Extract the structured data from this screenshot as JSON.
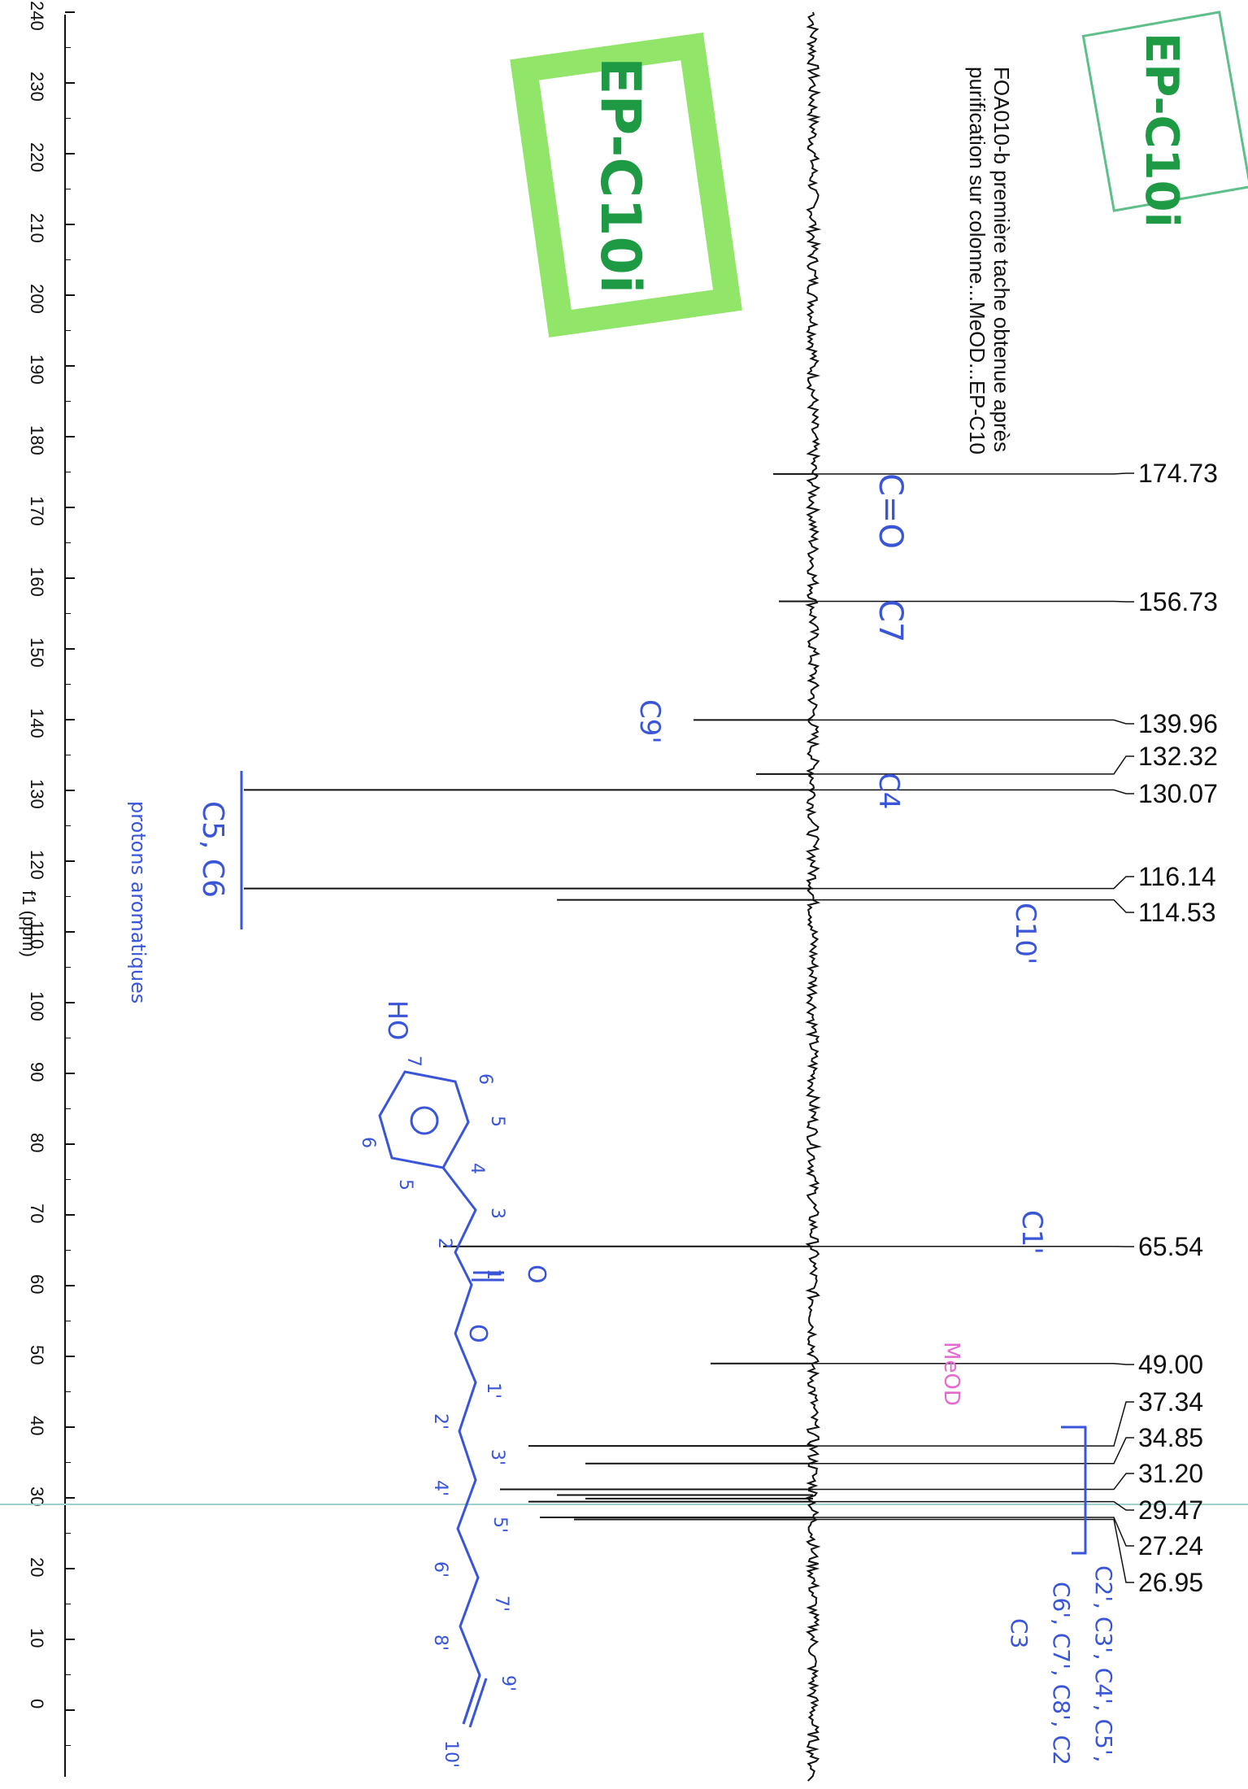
{
  "header": {
    "title_line1": "FOA010-b  première tache obtenue après",
    "title_line2": "purification sur colonne...MeOD...EP-C10"
  },
  "stamps": {
    "green_box": "EP-C10i",
    "outline_box": "EP-C10i"
  },
  "annotations": {
    "carbonyl": "C=O",
    "c7": "C7",
    "c9p": "C9'",
    "c4": "C4",
    "c5c6": "C5, C6",
    "aromatic_note": "protons aromatiques",
    "c10p": "C10'",
    "c1p": "C1'",
    "solvent": "MeOD",
    "aliphatic_line1": "C2', C3', C4', C5',",
    "aliphatic_line2": "C6', C7', C8', C2",
    "aliphatic_line3": "C3"
  },
  "structure": {
    "hydroxyl": "HO",
    "carbonyl_oxygen": "O",
    "ester_oxygen": "O",
    "atom_numbers": [
      "7",
      "6",
      "5",
      "6",
      "5",
      "4",
      "3",
      "2",
      "1",
      "1'",
      "2'",
      "3'",
      "4'",
      "5'",
      "6'",
      "7'",
      "8'",
      "9'",
      "10'"
    ]
  },
  "colors": {
    "spectrum": "#111111",
    "axis": "#111111",
    "handwriting_blue": "#3a55d8",
    "handwriting_green": "#1f9a44",
    "highlight_green": "#7ee04f",
    "solvent_pink": "#e46ad0",
    "cursor_line": "#9fcfcf"
  },
  "chart_data": {
    "type": "line",
    "orientation": "rotated-90",
    "xlabel": "f1 (ppm)",
    "ylabel": "",
    "xlim": [
      -5,
      240
    ],
    "grid": false,
    "x_ticks": [
      240,
      230,
      220,
      210,
      200,
      190,
      180,
      170,
      160,
      150,
      140,
      130,
      120,
      110,
      100,
      90,
      80,
      70,
      60,
      50,
      40,
      30,
      20,
      10,
      0
    ],
    "peak_labels": [
      "174.73",
      "156.73",
      "139.96",
      "132.32",
      "130.07",
      "116.14",
      "114.53",
      "65.54",
      "49.00",
      "37.34",
      "34.85",
      "31.20",
      "29.47",
      "27.24",
      "26.95"
    ],
    "peaks": [
      {
        "ppm": 174.73,
        "intensity": 0.07
      },
      {
        "ppm": 156.73,
        "intensity": 0.06
      },
      {
        "ppm": 139.96,
        "intensity": 0.21
      },
      {
        "ppm": 132.32,
        "intensity": 0.1
      },
      {
        "ppm": 130.07,
        "intensity": 1.0
      },
      {
        "ppm": 116.14,
        "intensity": 1.0
      },
      {
        "ppm": 114.53,
        "intensity": 0.45
      },
      {
        "ppm": 65.54,
        "intensity": 0.65
      },
      {
        "ppm": 49.0,
        "intensity": 0.18
      },
      {
        "ppm": 37.34,
        "intensity": 0.5
      },
      {
        "ppm": 34.85,
        "intensity": 0.4
      },
      {
        "ppm": 31.2,
        "intensity": 0.55
      },
      {
        "ppm": 30.4,
        "intensity": 0.45
      },
      {
        "ppm": 29.9,
        "intensity": 0.4
      },
      {
        "ppm": 29.47,
        "intensity": 0.5
      },
      {
        "ppm": 27.24,
        "intensity": 0.48
      },
      {
        "ppm": 26.95,
        "intensity": 0.42
      }
    ]
  }
}
